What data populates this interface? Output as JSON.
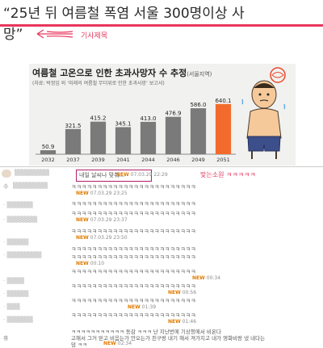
{
  "headline": {
    "line1": "“25년 뒤 여름철 폭염 서울 300명이상 사",
    "line2": "망”"
  },
  "annotations": {
    "article_title": "기사제목",
    "wish": "맞는소원 ㅋㅋㅋㅋㅋ"
  },
  "figure": {
    "title": "여름철 고온으로 인한 초과사망자 수 추정",
    "title_sub": "(서울지역)",
    "source": "(자료: 박정임 외 ‘미래의 여름철 무더위로 인한 초과사망’ 보고서)"
  },
  "chart_data": {
    "type": "bar",
    "categories": [
      "2032",
      "2037",
      "2039",
      "2041",
      "2044",
      "2046",
      "2049",
      "2051"
    ],
    "values": [
      50.9,
      321.5,
      415.2,
      345.1,
      413.0,
      476.9,
      586.0,
      640.1
    ],
    "value_labels": [
      "50.9",
      "321.5",
      "415.2",
      "345.1",
      "413.0",
      "476.9",
      "586.0",
      "640.1"
    ],
    "title": "여름철 고온으로 인한 초과사망자 수 추정",
    "xlabel": "",
    "ylabel": "",
    "ylim": [
      0,
      700
    ],
    "bar_color": "#7a7a7a",
    "highlight_color": "#f36b2c"
  },
  "comments": {
    "first_comment": "내일 날씨나 맞춰...",
    "rows": [
      {
        "text": "ㅋㅋㅋㅋㅋㅋㅋㅋㅋㅋㅋㅋㅋㅋㅋㅋㅋㅋㅋㅋㅋㅋㅋㅋ",
        "meta": "07.03.29 23:25"
      },
      {
        "text": "ㅋㅋㅋㅋㅋㅋㅋㅋㅋㅋㅋㅋㅋㅋㅋㅋㅋㅋㅋㅋㅋㅋㅋㅋ",
        "meta": "07.03.29 23:37"
      },
      {
        "text": "ㅋㅋㅋㅋㅋㅋㅋㅋㅋㅋㅋㅋㅋㅋㅋㅋㅋㅋㅋㅋㅋㅋㅋㅋ",
        "meta": "07.03.29 23:50"
      },
      {
        "text": "ㅋㅋㅋㅋㅋㅋㅋㅋㅋㅋㅋㅋㅋㅋㅋㅋㅋㅋㅋㅋㅋㅋㅋㅋ",
        "meta": "00:10"
      },
      {
        "text": "ㅋㅋㅋㅋㅋㅋㅋㅋㅋㅋㅋㅋㅋㅋㅋㅋㅋㅋㅋㅋㅋㅋㅋㅋ",
        "meta": "00:34"
      },
      {
        "text": "ㅋㅋㅋㅋㅋㅋㅋㅋㅋㅋㅋㅋㅋㅋㅋㅋㅋㅋㅋㅋㅋㅋㅋㅋ",
        "meta": "00:56"
      },
      {
        "text": "ㅋㅋㅋㅋㅋㅋㅋㅋㅋㅋㅋㅋㅋㅋㅋㅋㅋㅋㅋㅋㅋㅋㅋㅋ",
        "meta": "01:39"
      },
      {
        "text": "ㅋㅋㅋㅋㅋㅋㅋㅋㅋㅋㅋㅋㅋㅋㅋㅋㅋㅋㅋㅋㅋㅋㅋㅋ",
        "meta": "01:46"
      },
      {
        "text": "ㅋㅋㅋㅋㅋㅋㅋㅋㅋㅋㅋㅋㅋㅋㅋㅋㅋㅋㅋㅋㅋㅋㅋㅋ",
        "meta": "02:05"
      }
    ],
    "reply_line1": "ㅋㅋㅋㅋㅋㅋㅋㅋㅋㅋㅋ 동감 ㅋㅋㅋ 난 지난번에 기상청에서 비온다",
    "reply_line2": "고해서 그거 믿고 비음는가 안오는가 친구랑 내기 해서 져가지고 내가 영화비랑 냈 내다는",
    "reply_line3": "덤 ㅋㅋ",
    "reply_meta": "02:34",
    "new_badge": "NEW"
  },
  "sidebar": {
    "label_top": "수",
    "label_mark": "휴"
  }
}
